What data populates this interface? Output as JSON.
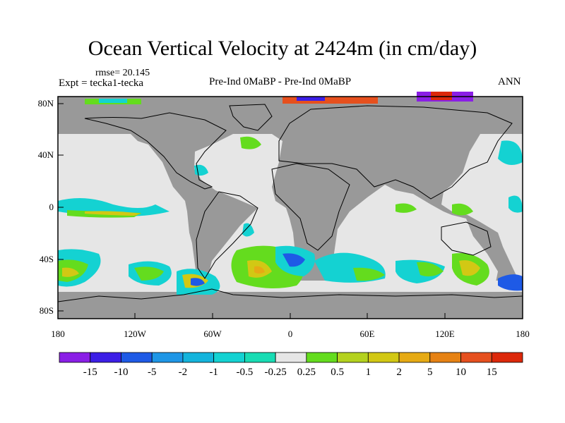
{
  "title": "Ocean Vertical Velocity at 2424m (in cm/day)",
  "rmse_label": "rmse= 20.145",
  "expt_label": "Expt = tecka1-tecka",
  "center_label": "Pre-Ind 0MaBP - Pre-Ind 0MaBP",
  "right_label": "ANN",
  "lat_ticks": [
    "80N",
    "40N",
    "0",
    "40S",
    "80S"
  ],
  "lon_ticks": [
    "180",
    "120W",
    "60W",
    "0",
    "60E",
    "120E",
    "180"
  ],
  "colorbar": {
    "labels": [
      "-15",
      "-10",
      "-5",
      "-2",
      "-1",
      "-0.5",
      "-0.25",
      "0.25",
      "0.5",
      "1",
      "2",
      "5",
      "10",
      "15"
    ],
    "colors": [
      "#8a1ee6",
      "#3c1ee6",
      "#1e5ae6",
      "#1e96e6",
      "#14b4dc",
      "#14d2d2",
      "#18dcb4",
      "#e6e6e6",
      "#64dc1e",
      "#b4d21e",
      "#d2c814",
      "#e6aa14",
      "#e68214",
      "#e6501e",
      "#dc280a"
    ]
  },
  "map_colors": {
    "land": "#999999",
    "neutral_ocean": "#e6e6e6"
  }
}
